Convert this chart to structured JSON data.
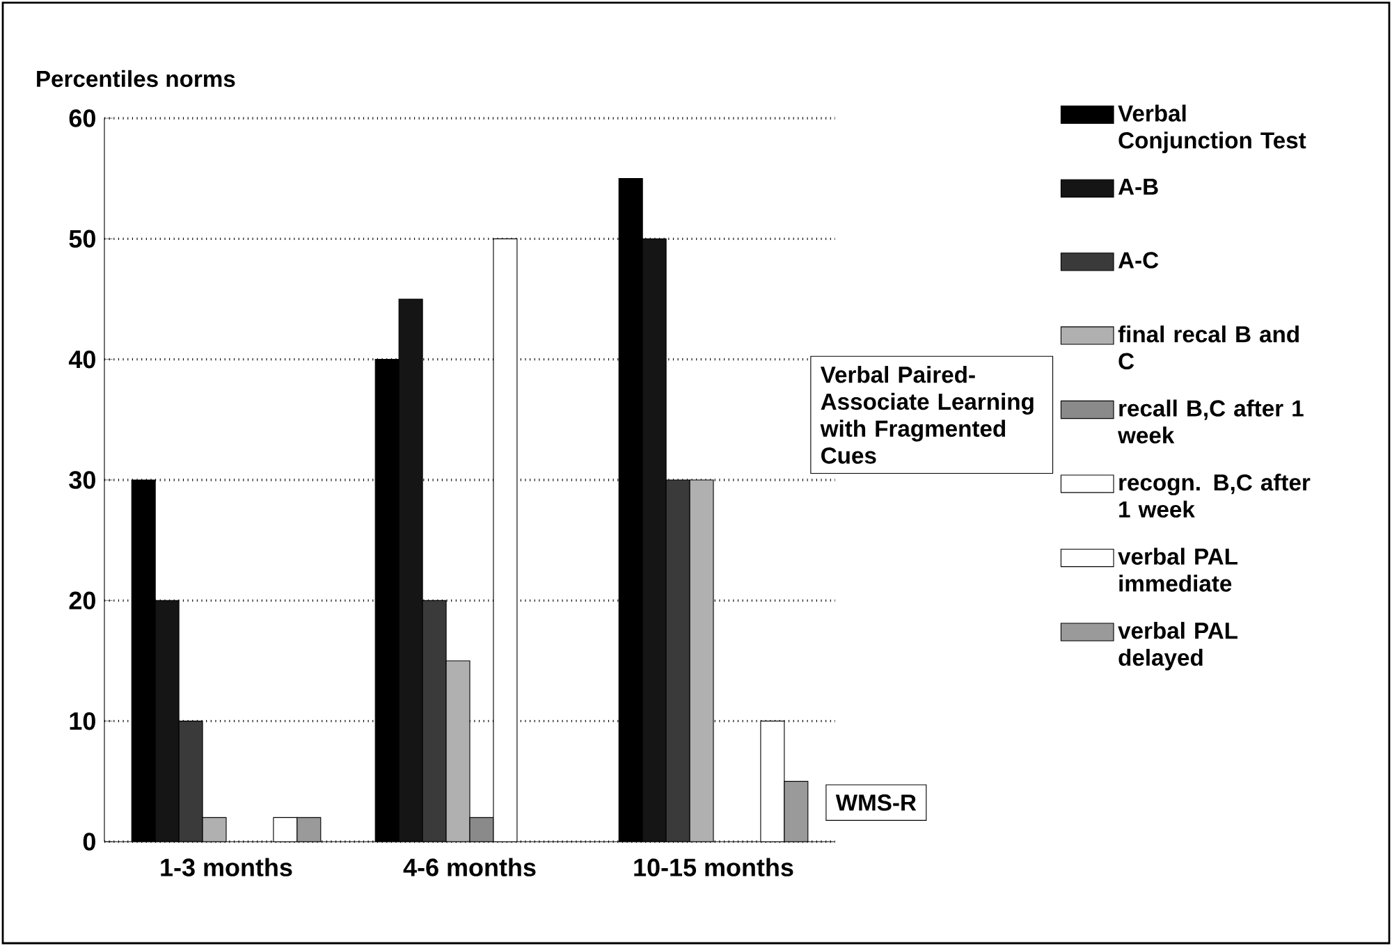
{
  "chart_data": {
    "type": "bar",
    "ylabel": "Percentiles norms",
    "categories": [
      "1-3 months",
      "4-6 months",
      "10-15 months"
    ],
    "series": [
      {
        "name": "Verbal Conjunction Test",
        "color": "#000000",
        "values": [
          30,
          40,
          55
        ]
      },
      {
        "name": "A-B",
        "color": "#151515",
        "values": [
          20,
          45,
          50
        ]
      },
      {
        "name": "A-C",
        "color": "#3a3a3a",
        "values": [
          10,
          20,
          30
        ]
      },
      {
        "name": "final recal B and C",
        "color": "#b0b0b0",
        "values": [
          2,
          15,
          30
        ]
      },
      {
        "name": "recall B,C after 1 week",
        "color": "#8a8a8a",
        "values": [
          null,
          2,
          null
        ]
      },
      {
        "name": "recogn. B,C after 1 week",
        "color": "#ffffff",
        "values": [
          null,
          50,
          null
        ]
      },
      {
        "name": "verbal PAL immediate",
        "color": "#ffffff",
        "values": [
          2,
          null,
          10
        ]
      },
      {
        "name": "verbal PAL delayed",
        "color": "#9a9a9a",
        "values": [
          2,
          null,
          5
        ]
      }
    ],
    "ylim": [
      0,
      60
    ],
    "yticks": [
      0,
      10,
      20,
      30,
      40,
      50,
      60
    ],
    "grid": "y",
    "legend": "right",
    "annotations": [
      "Verbal Paired-Associate Learning with Fragmented Cues",
      "WMS-R"
    ]
  }
}
